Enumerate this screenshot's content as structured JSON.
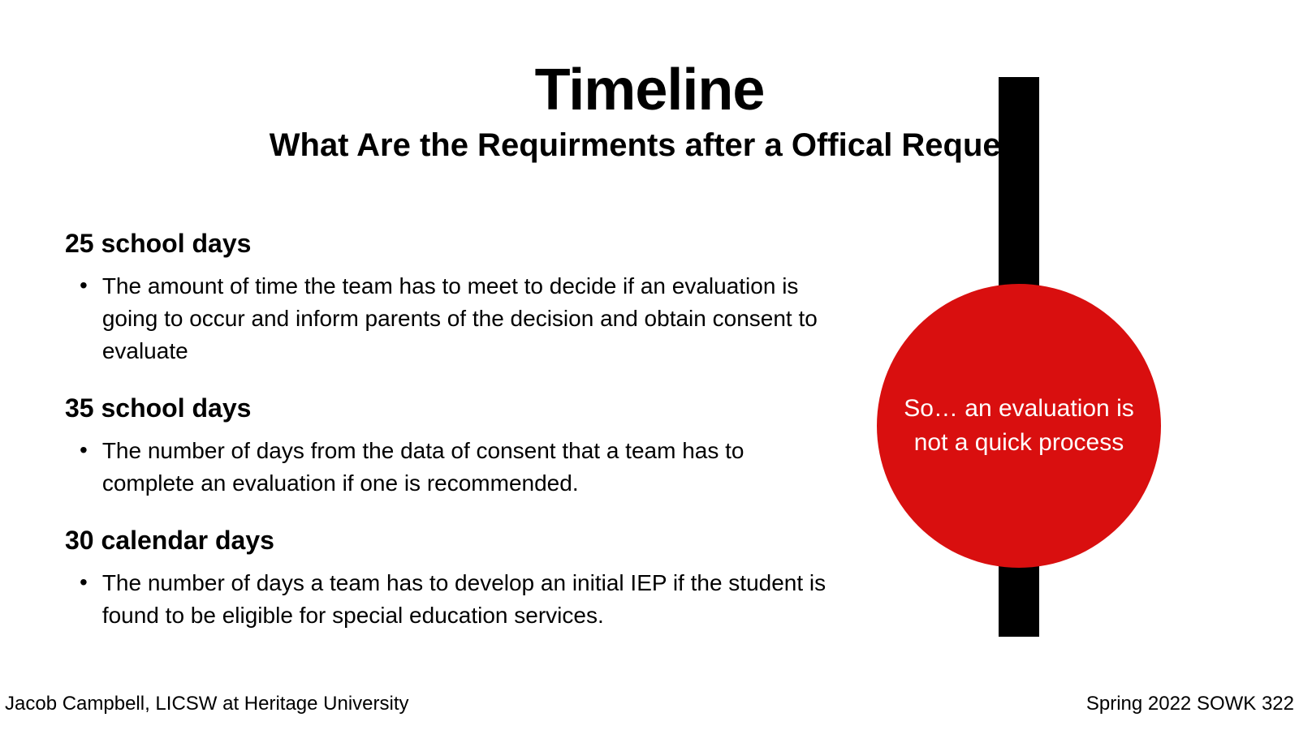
{
  "header": {
    "title": "Timeline",
    "subtitle": "What Are the Requirments after a Offical Request"
  },
  "sections": [
    {
      "heading": "25 school days",
      "bullet": "The amount of time the team has to meet to decide if an evaluation is going to occur and inform parents of the decision and obtain consent to evaluate"
    },
    {
      "heading": "35 school days",
      "bullet": "The number of days from the data of consent that a team has to complete an evaluation if one is recommended."
    },
    {
      "heading": "30 calendar days",
      "bullet": "The number of days a team has to develop an initial IEP if the student is found to be eligible for special education services."
    }
  ],
  "callout": {
    "text": "So… an evaluation is not a quick process",
    "background_color": "#d90f0f",
    "text_color": "#ffffff"
  },
  "decoration": {
    "bar_color": "#000000"
  },
  "footer": {
    "left": "Jacob Campbell, LICSW at Heritage University",
    "right": "Spring 2022 SOWK 322"
  }
}
